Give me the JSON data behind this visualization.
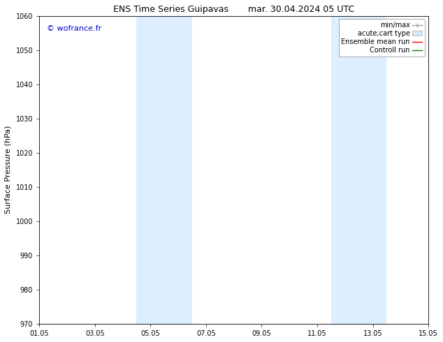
{
  "title_left": "ENS Time Series Guipavas",
  "title_right": "mar. 30.04.2024 05 UTC",
  "ylabel": "Surface Pressure (hPa)",
  "ylim": [
    970,
    1060
  ],
  "yticks": [
    970,
    980,
    990,
    1000,
    1010,
    1020,
    1030,
    1040,
    1050,
    1060
  ],
  "xtick_labels": [
    "01.05",
    "03.05",
    "05.05",
    "07.05",
    "09.05",
    "11.05",
    "13.05",
    "15.05"
  ],
  "xtick_positions": [
    0,
    2,
    4,
    6,
    8,
    10,
    12,
    14
  ],
  "shaded_regions": [
    {
      "x_start": 3.5,
      "x_end": 5.5,
      "color": "#ddeeff"
    },
    {
      "x_start": 10.5,
      "x_end": 12.5,
      "color": "#ddeeff"
    }
  ],
  "watermark": "© wofrance.fr",
  "watermark_color": "#0000cc",
  "background_color": "#ffffff",
  "title_fontsize": 9,
  "axis_label_fontsize": 8,
  "tick_fontsize": 7,
  "watermark_fontsize": 8,
  "legend_fontsize": 7
}
